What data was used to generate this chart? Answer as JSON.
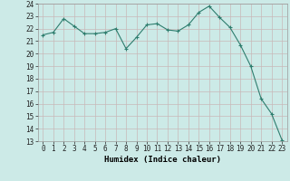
{
  "x": [
    0,
    1,
    2,
    3,
    4,
    5,
    6,
    7,
    8,
    9,
    10,
    11,
    12,
    13,
    14,
    15,
    16,
    17,
    18,
    19,
    20,
    21,
    22,
    23
  ],
  "y": [
    21.5,
    21.7,
    22.8,
    22.2,
    21.6,
    21.6,
    21.7,
    22.0,
    20.4,
    21.3,
    22.3,
    22.4,
    21.9,
    21.8,
    22.3,
    23.3,
    23.8,
    22.9,
    22.1,
    20.7,
    19.0,
    16.4,
    15.2,
    13.1
  ],
  "line_color": "#2e7d6e",
  "marker": "+",
  "marker_size": 3,
  "bg_color": "#cceae7",
  "grid_major_color": "#b0d8d4",
  "grid_minor_color": "#e0f5f3",
  "xlabel": "Humidex (Indice chaleur)",
  "xlim": [
    -0.5,
    23.5
  ],
  "ylim": [
    13,
    24
  ],
  "yticks": [
    13,
    14,
    15,
    16,
    17,
    18,
    19,
    20,
    21,
    22,
    23,
    24
  ],
  "xticks": [
    0,
    1,
    2,
    3,
    4,
    5,
    6,
    7,
    8,
    9,
    10,
    11,
    12,
    13,
    14,
    15,
    16,
    17,
    18,
    19,
    20,
    21,
    22,
    23
  ],
  "tick_fontsize": 5.5,
  "xlabel_fontsize": 6.5
}
